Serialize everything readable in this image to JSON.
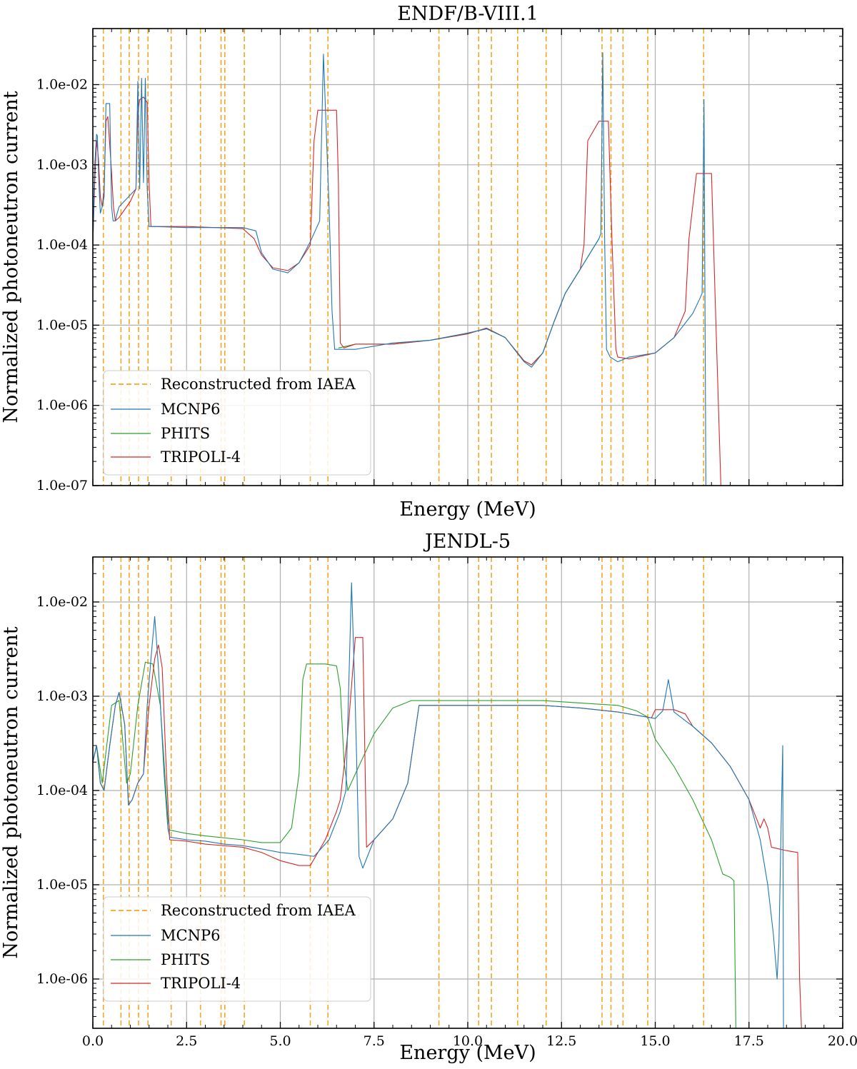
{
  "figure": {
    "panels": [
      {
        "title": "ENDF/B-VIII.1",
        "xlabel": "Energy (MeV)",
        "ylabel": "Normalized photoneutron current"
      },
      {
        "title": "JENDL-5",
        "xlabel": "Energy (MeV)",
        "ylabel": "Normalized photoneutron current"
      }
    ],
    "legend": [
      {
        "label": "Reconstructed from IAEA",
        "color": "#f5a623",
        "style": "dashed"
      },
      {
        "label": "MCNP6",
        "color": "#1f77b4",
        "style": "solid"
      },
      {
        "label": "PHITS",
        "color": "#2ca02c",
        "style": "solid"
      },
      {
        "label": "TRIPOLI-4",
        "color": "#d62728",
        "style": "solid"
      }
    ]
  },
  "chart_data": [
    {
      "type": "line",
      "title": "ENDF/B-VIII.1",
      "xlabel": "Energy (MeV)",
      "ylabel": "Normalized photoneutron current",
      "xlim": [
        0,
        20
      ],
      "ylim": [
        1e-07,
        0.05
      ],
      "yscale": "log",
      "grid": true,
      "legend_position": "lower-left",
      "y_tick_labels": [
        "1.0e-07",
        "1.0e-06",
        "1.0e-05",
        "1.0e-04",
        "1.0e-03",
        "1.0e-02"
      ],
      "x_tick_labels": [],
      "iaea_lines": [
        0.28,
        0.75,
        0.97,
        1.22,
        1.47,
        2.09,
        2.87,
        3.42,
        3.52,
        4.04,
        5.8,
        6.27,
        9.23,
        10.29,
        10.63,
        11.33,
        12.09,
        13.58,
        13.82,
        14.14,
        14.8,
        16.29
      ],
      "series": [
        {
          "name": "MCNP6",
          "color": "#1f77b4",
          "x": [
            0.0,
            0.05,
            0.1,
            0.12,
            0.16,
            0.2,
            0.25,
            0.3,
            0.35,
            0.45,
            0.5,
            0.54,
            0.6,
            0.65,
            0.7,
            1.15,
            1.2,
            1.25,
            1.3,
            1.35,
            1.4,
            1.45,
            1.5,
            1.55,
            1.6,
            2.5,
            3.0,
            4.0,
            4.35,
            4.5,
            4.8,
            5.2,
            5.5,
            5.8,
            6.05,
            6.15,
            6.3,
            6.38,
            6.45,
            6.5,
            7.0,
            8.0,
            9.0,
            10.0,
            10.5,
            11.0,
            11.5,
            11.7,
            12.0,
            12.3,
            12.6,
            13.0,
            13.5,
            13.55,
            13.6,
            13.65,
            13.7,
            13.8,
            14.0,
            14.3,
            15.0,
            15.5,
            16.0,
            16.2,
            16.25,
            16.3,
            16.35
          ],
          "y": [
            0.0001,
            0.001,
            0.0024,
            0.0023,
            0.0006,
            0.00025,
            0.0003,
            0.0004,
            0.0058,
            0.0058,
            0.0003,
            0.0002,
            0.0002,
            0.00025,
            0.0003,
            0.0005,
            0.011,
            0.0005,
            0.012,
            0.0006,
            0.012,
            0.0005,
            0.00017,
            0.00017,
            0.00017,
            0.000165,
            0.000165,
            0.000165,
            0.00015,
            8e-05,
            5e-05,
            4.5e-05,
            6e-05,
            0.00011,
            0.0002,
            0.024,
            0.0003,
            1.5e-05,
            5e-06,
            5e-06,
            5e-06,
            6e-06,
            6.5e-06,
            8e-06,
            9e-06,
            7e-06,
            3.5e-06,
            3e-06,
            4.5e-06,
            1.1e-05,
            2.5e-05,
            5e-05,
            0.00012,
            0.00014,
            0.025,
            0.00012,
            5e-06,
            4e-06,
            3.5e-06,
            4e-06,
            4.5e-06,
            7e-06,
            1.4e-05,
            2.2e-05,
            2.5e-05,
            0.0065,
            1e-07
          ]
        },
        {
          "name": "PHITS",
          "color": "#2ca02c",
          "x": [
            6.55,
            7.0,
            8.0,
            9.0,
            10.0,
            10.5,
            11.0,
            11.5,
            11.7,
            12.0,
            12.3,
            12.6,
            13.0,
            13.5
          ],
          "y": [
            5.2e-06,
            5.8e-06,
            5.8e-06,
            6.5e-06,
            7.8e-06,
            9.2e-06,
            7e-06,
            3.6e-06,
            3.2e-06,
            4.5e-06,
            1.1e-05,
            2.5e-05,
            5e-05,
            0.00012
          ]
        },
        {
          "name": "TRIPOLI-4",
          "color": "#d62728",
          "x": [
            0.0,
            0.05,
            0.1,
            0.15,
            0.2,
            0.25,
            0.3,
            0.35,
            0.4,
            0.5,
            0.55,
            0.6,
            0.7,
            1.0,
            1.15,
            1.2,
            1.25,
            1.35,
            1.45,
            1.5,
            1.55,
            2.5,
            4.0,
            4.3,
            4.5,
            4.8,
            5.2,
            5.5,
            5.8,
            5.9,
            6.0,
            6.5,
            6.55,
            6.6,
            6.7,
            7.0,
            8.0,
            9.0,
            10.0,
            10.5,
            11.0,
            11.5,
            11.7,
            12.0,
            12.3,
            12.6,
            13.0,
            13.1,
            13.2,
            13.5,
            13.75,
            13.85,
            13.95,
            14.0,
            14.3,
            15.0,
            15.5,
            15.8,
            15.9,
            16.1,
            16.5,
            16.6,
            16.75
          ],
          "y": [
            0.0001,
            0.0006,
            0.002,
            0.0012,
            0.0004,
            0.0003,
            0.0005,
            0.0035,
            0.004,
            0.0008,
            0.0003,
            0.0002,
            0.00022,
            0.00035,
            0.0005,
            0.0045,
            0.0065,
            0.007,
            0.006,
            0.0006,
            0.00017,
            0.00017,
            0.00016,
            0.00012,
            7.5e-05,
            5.2e-05,
            4.8e-05,
            6e-05,
            0.0001,
            0.002,
            0.0048,
            0.0048,
            0.0006,
            6e-06,
            5.2e-06,
            5.8e-06,
            5.8e-06,
            6.5e-06,
            7.8e-06,
            9.2e-06,
            7e-06,
            3.6e-06,
            3.2e-06,
            4.5e-06,
            1.1e-05,
            2.5e-05,
            5e-05,
            0.0001,
            0.002,
            0.0035,
            0.0035,
            0.0001,
            5e-06,
            4e-06,
            3.8e-06,
            4.5e-06,
            7e-06,
            1.5e-05,
            0.00012,
            0.00078,
            0.00078,
            2e-05,
            1e-07
          ]
        }
      ]
    },
    {
      "type": "line",
      "title": "JENDL-5",
      "xlabel": "Energy (MeV)",
      "ylabel": "Normalized photoneutron current",
      "xlim": [
        0,
        20
      ],
      "ylim": [
        3e-07,
        0.03
      ],
      "yscale": "log",
      "grid": true,
      "legend_position": "lower-left",
      "y_tick_labels": [
        "1.0e-06",
        "1.0e-05",
        "1.0e-04",
        "1.0e-03",
        "1.0e-02"
      ],
      "x_tick_labels": [
        "0.0",
        "2.5",
        "5.0",
        "7.5",
        "10.0",
        "12.5",
        "15.0",
        "17.5",
        "20.0"
      ],
      "iaea_lines": [
        0.28,
        0.75,
        0.97,
        1.22,
        1.47,
        2.09,
        2.87,
        3.42,
        3.52,
        4.04,
        5.8,
        6.27,
        9.23,
        10.29,
        10.63,
        11.33,
        12.09,
        13.58,
        13.82,
        14.14,
        14.8,
        16.29
      ],
      "series": [
        {
          "name": "MCNP6",
          "color": "#1f77b4",
          "x": [
            0.0,
            0.1,
            0.2,
            0.3,
            0.45,
            0.6,
            0.7,
            0.85,
            0.95,
            1.05,
            1.2,
            1.35,
            1.45,
            1.55,
            1.65,
            1.75,
            1.9,
            2.0,
            2.05,
            2.5,
            3.0,
            3.5,
            4.0,
            4.5,
            5.0,
            5.5,
            5.9,
            6.3,
            6.6,
            6.75,
            6.9,
            7.0,
            7.1,
            7.2,
            7.5,
            8.0,
            8.4,
            8.7,
            9.0,
            10.0,
            11.0,
            12.0,
            13.0,
            14.0,
            15.0,
            15.2,
            15.35,
            15.5,
            16.0,
            16.5,
            17.0,
            17.5,
            17.8,
            18.0,
            18.15,
            18.25,
            18.3,
            18.35,
            18.4,
            18.42
          ],
          "y": [
            0.0002,
            0.0003,
            0.00012,
            0.0001,
            0.0003,
            0.0008,
            0.0011,
            0.0005,
            7e-05,
            8e-05,
            0.00012,
            0.00015,
            0.0008,
            0.0025,
            0.007,
            0.002,
            0.00015,
            4e-05,
            3.2e-05,
            3e-05,
            2.9e-05,
            2.7e-05,
            2.6e-05,
            2.4e-05,
            2.2e-05,
            2.1e-05,
            2e-05,
            3e-05,
            6e-05,
            0.0001,
            0.016,
            0.0008,
            2e-05,
            1.5e-05,
            3e-05,
            5e-05,
            0.00012,
            0.0008,
            0.0008,
            0.0008,
            0.0008,
            0.0008,
            0.00075,
            0.00068,
            0.00058,
            0.0007,
            0.0015,
            0.00068,
            0.00048,
            0.00032,
            0.00018,
            8e-05,
            3e-05,
            1e-05,
            3e-06,
            1e-06,
            2.5e-06,
            3e-05,
            0.0003,
            3e-07
          ]
        },
        {
          "name": "PHITS",
          "color": "#2ca02c",
          "x": [
            0.0,
            0.1,
            0.25,
            0.5,
            0.7,
            0.9,
            1.0,
            1.2,
            1.4,
            1.6,
            1.8,
            2.0,
            2.05,
            2.5,
            3.0,
            4.0,
            4.5,
            5.0,
            5.3,
            5.5,
            5.6,
            5.7,
            6.2,
            6.5,
            6.6,
            6.7,
            6.8,
            7.0,
            7.5,
            8.0,
            8.5,
            9.0,
            10.0,
            12.0,
            14.0,
            14.5,
            14.8,
            15.0,
            15.5,
            16.0,
            16.5,
            16.8,
            17.0,
            17.1,
            17.15
          ],
          "y": [
            0.0002,
            0.0003,
            0.00012,
            0.0008,
            0.0009,
            0.00012,
            0.00015,
            0.0008,
            0.0023,
            0.0022,
            0.0008,
            5e-05,
            3.8e-05,
            3.5e-05,
            3.3e-05,
            3e-05,
            2.8e-05,
            2.8e-05,
            4e-05,
            0.00015,
            0.0015,
            0.0022,
            0.0022,
            0.0021,
            0.0012,
            0.0002,
            0.0001,
            0.00015,
            0.0004,
            0.00075,
            0.0009,
            0.0009,
            0.0009,
            0.0009,
            0.0008,
            0.0007,
            0.0006,
            0.00035,
            0.00018,
            8e-05,
            3e-05,
            1.3e-05,
            1.2e-05,
            1.1e-05,
            3e-07
          ]
        },
        {
          "name": "TRIPOLI-4",
          "color": "#d62728",
          "x": [
            0.0,
            0.1,
            0.2,
            0.3,
            0.45,
            0.6,
            0.7,
            0.85,
            0.95,
            1.05,
            1.2,
            1.35,
            1.5,
            1.65,
            1.75,
            1.85,
            1.95,
            2.05,
            2.5,
            3.0,
            4.0,
            4.5,
            5.0,
            5.5,
            5.8,
            6.2,
            6.5,
            6.6,
            6.8,
            7.0,
            7.2,
            7.3,
            7.5,
            8.0,
            8.4,
            8.7,
            9.0,
            10.0,
            11.0,
            12.0,
            13.0,
            14.0,
            14.9,
            15.0,
            15.5,
            15.8,
            16.0,
            16.5,
            17.0,
            17.5,
            17.8,
            17.9,
            18.0,
            18.1,
            18.3,
            18.5,
            18.8,
            18.85,
            18.9
          ],
          "y": [
            0.0002,
            0.0003,
            0.00012,
            0.0001,
            0.0003,
            0.0008,
            0.0011,
            0.0005,
            7e-05,
            8e-05,
            0.00012,
            0.00015,
            0.0008,
            0.0025,
            0.0035,
            0.002,
            0.0002,
            3e-05,
            2.9e-05,
            2.7e-05,
            2.5e-05,
            2.2e-05,
            1.8e-05,
            1.6e-05,
            1.6e-05,
            3e-05,
            6e-05,
            8e-05,
            0.0004,
            0.0042,
            0.0042,
            2.5e-05,
            3e-05,
            5e-05,
            0.00012,
            0.0008,
            0.0008,
            0.0008,
            0.0008,
            0.0008,
            0.00075,
            0.00068,
            0.00059,
            0.00072,
            0.00072,
            0.00065,
            0.00048,
            0.00032,
            0.00018,
            8e-05,
            4e-05,
            5e-05,
            4e-05,
            2.5e-05,
            2.4e-05,
            2.3e-05,
            2.2e-05,
            1e-06,
            3e-07
          ]
        }
      ]
    }
  ]
}
